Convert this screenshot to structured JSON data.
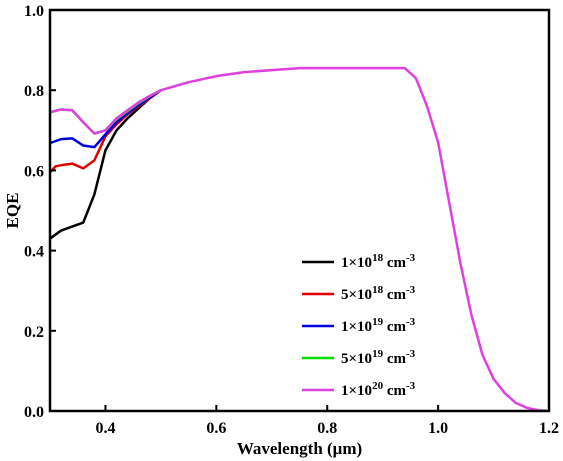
{
  "chart_data": {
    "type": "line",
    "title": "",
    "xlabel": "Wavelength (μm)",
    "ylabel": "EQE",
    "xlim": [
      0.3,
      1.2
    ],
    "ylim": [
      0.0,
      1.0
    ],
    "xticks": [
      0.4,
      0.6,
      0.8,
      1.0,
      1.2
    ],
    "xtick_labels": [
      "0.4",
      "0.6",
      "0.8",
      "1.0",
      "1.2"
    ],
    "yticks": [
      0.0,
      0.2,
      0.4,
      0.6,
      0.8,
      1.0
    ],
    "ytick_labels": [
      "0.0",
      "0.2",
      "0.4",
      "0.6",
      "0.8",
      "1.0"
    ],
    "grid": false,
    "legend_position": "center-right",
    "series": [
      {
        "name": "1×10^18 cm^-3",
        "legend": {
          "base": "1×10",
          "exp": "18",
          "unit": " cm",
          "unit_exp": "-3"
        },
        "color": "#000000",
        "x": [
          0.3,
          0.32,
          0.34,
          0.36,
          0.38,
          0.4,
          0.42,
          0.44,
          0.46,
          0.48,
          0.5
        ],
        "y": [
          0.43,
          0.45,
          0.46,
          0.47,
          0.54,
          0.65,
          0.7,
          0.73,
          0.755,
          0.78,
          0.8
        ]
      },
      {
        "name": "5×10^18 cm^-3",
        "legend": {
          "base": "5×10",
          "exp": "18",
          "unit": " cm",
          "unit_exp": "-3"
        },
        "color": "#e00000",
        "x": [
          0.3,
          0.31,
          0.32,
          0.34,
          0.36,
          0.38,
          0.4,
          0.42,
          0.44,
          0.46,
          0.48,
          0.5
        ],
        "y": [
          0.595,
          0.61,
          0.613,
          0.617,
          0.605,
          0.625,
          0.685,
          0.715,
          0.74,
          0.76,
          0.78,
          0.8
        ]
      },
      {
        "name": "1×10^19 cm^-3",
        "legend": {
          "base": "1×10",
          "exp": "19",
          "unit": " cm",
          "unit_exp": "-3"
        },
        "color": "#0000e0",
        "x": [
          0.3,
          0.32,
          0.34,
          0.36,
          0.38,
          0.4,
          0.42,
          0.44,
          0.46,
          0.48,
          0.5
        ],
        "y": [
          0.668,
          0.678,
          0.68,
          0.662,
          0.658,
          0.69,
          0.72,
          0.743,
          0.763,
          0.782,
          0.8
        ]
      },
      {
        "name": "5×10^19 cm^-3",
        "legend": {
          "base": "5×10",
          "exp": "19",
          "unit": " cm",
          "unit_exp": "-3"
        },
        "color": "#00e000",
        "x": [
          0.3,
          0.32,
          0.34,
          0.36,
          0.38,
          0.4,
          0.42,
          0.44,
          0.46,
          0.48,
          0.5
        ],
        "y": [
          0.745,
          0.752,
          0.75,
          0.72,
          0.692,
          0.7,
          0.728,
          0.748,
          0.768,
          0.785,
          0.8
        ]
      },
      {
        "name": "1×10^20 cm^-3",
        "legend": {
          "base": "1×10",
          "exp": "20",
          "unit": " cm",
          "unit_exp": "-3"
        },
        "color": "#e040e0",
        "x": [
          0.3,
          0.32,
          0.34,
          0.36,
          0.38,
          0.4,
          0.42,
          0.44,
          0.46,
          0.48,
          0.5,
          0.55,
          0.6,
          0.65,
          0.7,
          0.75,
          0.8,
          0.85,
          0.9,
          0.94,
          0.96,
          0.98,
          1.0,
          1.02,
          1.04,
          1.06,
          1.08,
          1.1,
          1.12,
          1.14,
          1.16,
          1.18,
          1.2
        ],
        "y": [
          0.745,
          0.752,
          0.75,
          0.72,
          0.692,
          0.7,
          0.73,
          0.75,
          0.77,
          0.786,
          0.8,
          0.82,
          0.835,
          0.845,
          0.85,
          0.855,
          0.855,
          0.855,
          0.855,
          0.855,
          0.83,
          0.76,
          0.67,
          0.52,
          0.37,
          0.24,
          0.14,
          0.08,
          0.045,
          0.02,
          0.008,
          0.002,
          0.0
        ]
      }
    ]
  }
}
